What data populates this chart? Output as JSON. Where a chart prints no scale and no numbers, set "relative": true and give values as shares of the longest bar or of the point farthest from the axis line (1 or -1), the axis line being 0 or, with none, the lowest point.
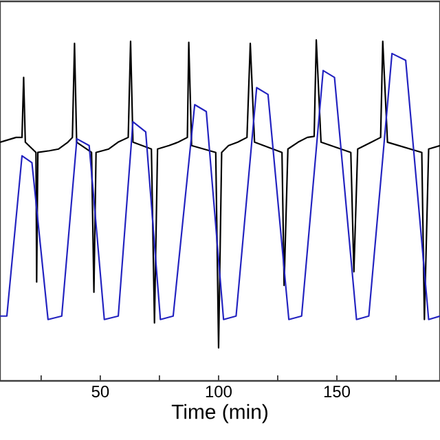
{
  "chart_data": {
    "type": "line",
    "xlabel": "Time (min)",
    "relative": true,
    "xlim": [
      7.6,
      193.6
    ],
    "xticks": [
      {
        "value": 25,
        "label": null
      },
      50,
      {
        "value": 75,
        "label": null
      },
      100,
      {
        "value": 125,
        "label": null
      },
      150,
      {
        "value": 175,
        "label": null
      }
    ],
    "grid": false,
    "marker": "none",
    "line_style": "solid",
    "series": [
      {
        "color": "#000000",
        "x": [
          7.6,
          14.4,
          16.9,
          17.6,
          18.3,
          22.8,
          23.1,
          23.6,
          28.5,
          32.4,
          36.3,
          38.2,
          39.1,
          40.0,
          46.3,
          47.3,
          48.2,
          53.6,
          57.5,
          61.8,
          62.8,
          63.8,
          71.6,
          72.9,
          74.2,
          79.0,
          82.9,
          86.8,
          87.4,
          88.6,
          98.8,
          100.0,
          101.3,
          104.2,
          108.1,
          112.0,
          113.4,
          115.2,
          126.8,
          127.7,
          129.3,
          133.6,
          137.5,
          140.4,
          141.3,
          143.3,
          155.9,
          157.2,
          158.8,
          164.6,
          168.5,
          169.4,
          171.4,
          185.9,
          187.0,
          188.8,
          193.6
        ],
        "values": [
          0.7,
          0.714,
          0.714,
          0.89,
          0.7,
          0.67,
          0.29,
          0.67,
          0.675,
          0.68,
          0.7,
          0.714,
          0.99,
          0.7,
          0.67,
          0.26,
          0.67,
          0.68,
          0.7,
          0.714,
          0.996,
          0.7,
          0.68,
          0.17,
          0.68,
          0.69,
          0.7,
          0.714,
          0.993,
          0.69,
          0.67,
          0.097,
          0.67,
          0.69,
          0.7,
          0.714,
          0.99,
          0.7,
          0.67,
          0.28,
          0.68,
          0.7,
          0.714,
          0.717,
          1.0,
          0.7,
          0.67,
          0.32,
          0.68,
          0.7,
          0.714,
          0.996,
          0.7,
          0.67,
          0.18,
          0.68,
          0.69
        ]
      },
      {
        "color": "#2323c0",
        "x": [
          7.6,
          10.5,
          16.9,
          21.1,
          27.9,
          33.7,
          40.1,
          45.3,
          51.7,
          57.6,
          63.8,
          69.2,
          75.4,
          80.8,
          89.9,
          94.8,
          102.1,
          107.4,
          116.1,
          120.9,
          129.7,
          135.1,
          144.2,
          149.0,
          158.3,
          163.5,
          173.3,
          179.1,
          188.8,
          193.6
        ],
        "values": [
          0.19,
          0.19,
          0.66,
          0.64,
          0.18,
          0.19,
          0.71,
          0.69,
          0.18,
          0.19,
          0.76,
          0.73,
          0.18,
          0.19,
          0.81,
          0.79,
          0.18,
          0.19,
          0.86,
          0.84,
          0.18,
          0.19,
          0.91,
          0.89,
          0.18,
          0.19,
          0.96,
          0.94,
          0.18,
          0.19
        ]
      }
    ]
  }
}
